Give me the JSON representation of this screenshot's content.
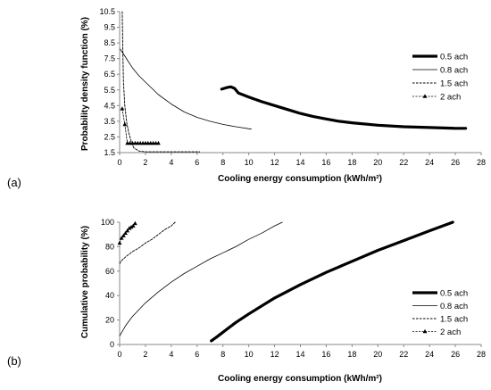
{
  "chart_data": [
    {
      "type": "line",
      "panel_label": "(a)",
      "xlabel": "Cooling energy consumption (kWh/m²)",
      "ylabel": "Probability density function (%)",
      "xlim": [
        0,
        28
      ],
      "ylim": [
        1.5,
        10.5
      ],
      "xticks": [
        "0",
        "2",
        "4",
        "6",
        "8",
        "10",
        "12",
        "14",
        "16",
        "18",
        "20",
        "22",
        "24",
        "26",
        "28"
      ],
      "yticks": [
        "1.5",
        "2.5",
        "3.5",
        "4.5",
        "5.5",
        "6.5",
        "7.5",
        "8.5",
        "9.5",
        "10.5"
      ],
      "grid": false,
      "legend_position": "right",
      "series": [
        {
          "name": "0.5 ach",
          "style": "thick",
          "x": [
            7.9,
            8.3,
            8.6,
            8.9,
            9.2,
            10,
            11,
            12,
            13,
            14,
            15,
            16,
            17,
            18,
            20,
            22,
            24,
            26,
            26.8
          ],
          "y": [
            5.55,
            5.65,
            5.7,
            5.6,
            5.3,
            5.05,
            4.75,
            4.5,
            4.25,
            4.0,
            3.8,
            3.65,
            3.5,
            3.4,
            3.25,
            3.15,
            3.1,
            3.05,
            3.05
          ]
        },
        {
          "name": "0.8 ach",
          "style": "thin",
          "x": [
            0.05,
            0.3,
            0.6,
            1,
            1.5,
            2,
            3,
            4,
            5,
            6,
            7,
            8,
            9,
            10.2
          ],
          "y": [
            8.1,
            7.8,
            7.4,
            6.9,
            6.4,
            6.0,
            5.2,
            4.6,
            4.1,
            3.75,
            3.5,
            3.3,
            3.15,
            3.0
          ]
        },
        {
          "name": "1.5 ach",
          "style": "dashed",
          "x": [
            0.2,
            0.25,
            0.3,
            0.4,
            0.55,
            0.7,
            0.9,
            1.1,
            1.5,
            2,
            3,
            4,
            5,
            6.2
          ],
          "y": [
            10.5,
            8,
            6,
            4.5,
            3.4,
            2.8,
            2.2,
            1.8,
            1.6,
            1.55,
            1.55,
            1.55,
            1.55,
            1.55
          ]
        },
        {
          "name": "2 ach",
          "style": "marker",
          "x": [
            0.2,
            0.4,
            0.6,
            0.8,
            1.0,
            1.2,
            1.4,
            1.6,
            1.8,
            2.0,
            2.2,
            2.4,
            2.6,
            2.8,
            3.0
          ],
          "y": [
            4.3,
            3.3,
            2.1,
            2.1,
            2.1,
            2.1,
            2.1,
            2.1,
            2.1,
            2.1,
            2.1,
            2.1,
            2.1,
            2.1,
            2.1
          ]
        }
      ]
    },
    {
      "type": "line",
      "panel_label": "(b)",
      "xlabel": "Cooling energy consumption (kWh/m²)",
      "ylabel": "Cumulative probability (%)",
      "xlim": [
        0,
        28
      ],
      "ylim": [
        0,
        100
      ],
      "xticks": [
        "0",
        "2",
        "4",
        "6",
        "8",
        "10",
        "12",
        "14",
        "16",
        "18",
        "20",
        "22",
        "24",
        "26",
        "28"
      ],
      "yticks": [
        "0",
        "20",
        "40",
        "60",
        "80",
        "100"
      ],
      "grid": false,
      "legend_position": "bottom-right",
      "series": [
        {
          "name": "0.5 ach",
          "style": "thick",
          "x": [
            7.1,
            7.5,
            8,
            9,
            10,
            12,
            14,
            16,
            18,
            20,
            22,
            24,
            25.8
          ],
          "y": [
            3,
            6,
            10,
            18,
            25,
            38,
            49,
            59,
            68,
            77,
            85,
            93,
            100
          ]
        },
        {
          "name": "0.8 ach",
          "style": "thin",
          "x": [
            0,
            0.5,
            1,
            2,
            3,
            4,
            5,
            6,
            7,
            8,
            9,
            10,
            11,
            12,
            12.6
          ],
          "y": [
            7,
            16,
            23,
            34,
            43,
            51,
            58,
            64,
            70,
            75,
            80,
            86,
            91,
            97,
            100
          ]
        },
        {
          "name": "1.5 ach",
          "style": "dashed",
          "x": [
            0,
            0.1,
            0.3,
            0.5,
            1,
            1.5,
            2,
            2.5,
            3,
            3.5,
            4,
            4.3
          ],
          "y": [
            66,
            68,
            70,
            72,
            76,
            79,
            83,
            86,
            90,
            94,
            97,
            100
          ]
        },
        {
          "name": "2 ach",
          "style": "marker",
          "x": [
            0,
            0.15,
            0.3,
            0.45,
            0.6,
            0.75,
            0.9,
            1.05,
            1.2
          ],
          "y": [
            83,
            87,
            89,
            91,
            93,
            95,
            96,
            97,
            99
          ]
        }
      ]
    }
  ]
}
